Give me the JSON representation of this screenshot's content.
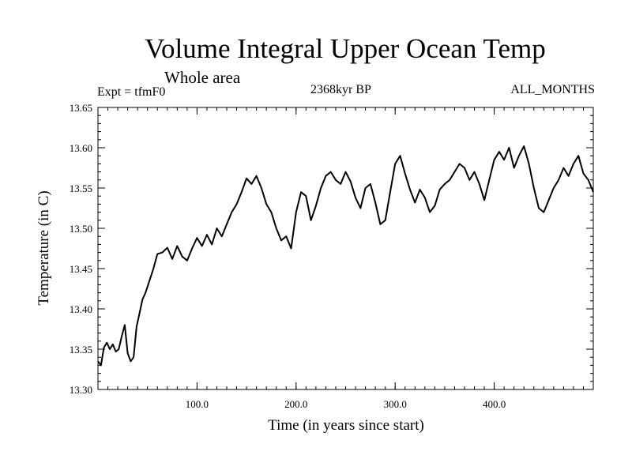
{
  "chart_data": {
    "type": "line",
    "title": "Volume Integral Upper Ocean Temp",
    "subtitle": "Whole area",
    "experiment_label": "Expt = tfmF0",
    "period_label": "2368kyr BP",
    "months_label": "ALL_MONTHS",
    "xlabel": "Time (in years since start)",
    "ylabel": "Temperature (in C)",
    "xlim": [
      0,
      500
    ],
    "ylim": [
      13.3,
      13.65
    ],
    "xticks": [
      100,
      200,
      300,
      400
    ],
    "xtick_labels": [
      "100.0",
      "200.0",
      "300.0",
      "400.0"
    ],
    "yticks": [
      13.3,
      13.35,
      13.4,
      13.45,
      13.5,
      13.55,
      13.6,
      13.65
    ],
    "ytick_labels": [
      "13.30",
      "13.35",
      "13.40",
      "13.45",
      "13.50",
      "13.55",
      "13.60",
      "13.65"
    ],
    "grid": false,
    "series": [
      {
        "name": "tfmF0",
        "x": [
          0,
          3,
          6,
          9,
          12,
          15,
          18,
          21,
          24,
          27,
          30,
          33,
          36,
          39,
          42,
          45,
          48,
          52,
          56,
          60,
          65,
          70,
          75,
          80,
          85,
          90,
          95,
          100,
          105,
          110,
          115,
          120,
          125,
          130,
          135,
          140,
          145,
          150,
          155,
          160,
          165,
          170,
          175,
          180,
          185,
          190,
          195,
          200,
          205,
          210,
          215,
          220,
          225,
          230,
          235,
          240,
          245,
          250,
          255,
          260,
          265,
          270,
          275,
          280,
          285,
          290,
          295,
          300,
          305,
          310,
          315,
          320,
          325,
          330,
          335,
          340,
          345,
          350,
          355,
          360,
          365,
          370,
          375,
          380,
          385,
          390,
          395,
          400,
          405,
          410,
          415,
          420,
          425,
          430,
          435,
          440,
          445,
          450,
          455,
          460,
          465,
          470,
          475,
          480,
          485,
          490,
          495,
          500
        ],
        "values": [
          13.335,
          13.33,
          13.352,
          13.358,
          13.35,
          13.356,
          13.347,
          13.35,
          13.366,
          13.38,
          13.345,
          13.335,
          13.34,
          13.378,
          13.395,
          13.412,
          13.42,
          13.435,
          13.45,
          13.468,
          13.47,
          13.476,
          13.462,
          13.478,
          13.465,
          13.46,
          13.475,
          13.488,
          13.478,
          13.492,
          13.48,
          13.5,
          13.49,
          13.505,
          13.52,
          13.53,
          13.545,
          13.562,
          13.555,
          13.565,
          13.55,
          13.53,
          13.52,
          13.5,
          13.485,
          13.49,
          13.475,
          13.52,
          13.545,
          13.54,
          13.51,
          13.528,
          13.55,
          13.565,
          13.57,
          13.56,
          13.555,
          13.57,
          13.558,
          13.538,
          13.525,
          13.55,
          13.555,
          13.532,
          13.505,
          13.51,
          13.545,
          13.58,
          13.59,
          13.568,
          13.548,
          13.532,
          13.548,
          13.538,
          13.52,
          13.528,
          13.548,
          13.555,
          13.56,
          13.57,
          13.58,
          13.575,
          13.56,
          13.57,
          13.555,
          13.535,
          13.56,
          13.585,
          13.595,
          13.585,
          13.6,
          13.575,
          13.59,
          13.602,
          13.58,
          13.55,
          13.525,
          13.52,
          13.535,
          13.55,
          13.56,
          13.575,
          13.565,
          13.58,
          13.59,
          13.568,
          13.56,
          13.545
        ]
      }
    ]
  }
}
